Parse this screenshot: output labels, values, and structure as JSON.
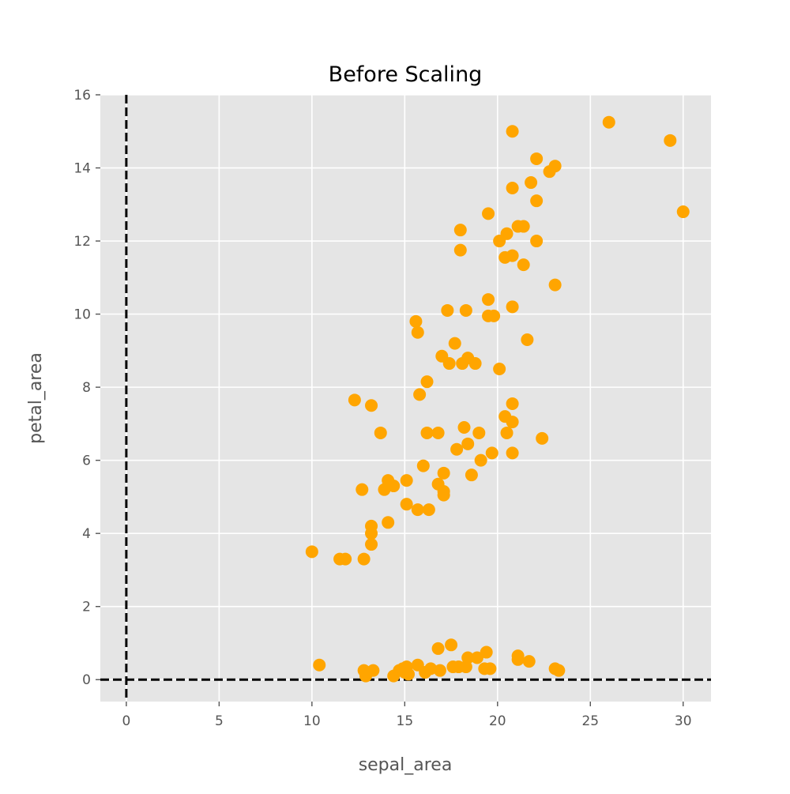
{
  "chart_data": {
    "type": "scatter",
    "title": "Before Scaling",
    "xlabel": "sepal_area",
    "ylabel": "petal_area",
    "xlim": [
      -1.4,
      31.5
    ],
    "ylim": [
      -0.6,
      16
    ],
    "xticks": [
      0,
      5,
      10,
      15,
      20,
      25,
      30
    ],
    "yticks": [
      0,
      2,
      4,
      6,
      8,
      10,
      12,
      14,
      16
    ],
    "grid": true,
    "legend": "none",
    "colors": {
      "background": "#e5e5e5",
      "grid": "#ffffff",
      "marker": "#ffa500",
      "reference_lines": "#000000"
    },
    "reference_lines": {
      "x": 0,
      "y": 0,
      "style": "dashed"
    },
    "series": [
      {
        "points": [
          [
            10.0,
            3.5
          ],
          [
            10.4,
            0.4
          ],
          [
            11.5,
            3.3
          ],
          [
            11.8,
            3.3
          ],
          [
            12.3,
            7.65
          ],
          [
            12.7,
            5.2
          ],
          [
            12.8,
            3.3
          ],
          [
            12.8,
            0.25
          ],
          [
            12.9,
            0.1
          ],
          [
            13.3,
            0.25
          ],
          [
            13.2,
            7.5
          ],
          [
            13.2,
            4.2
          ],
          [
            13.2,
            4.0
          ],
          [
            13.2,
            3.7
          ],
          [
            13.7,
            6.75
          ],
          [
            13.9,
            5.2
          ],
          [
            14.1,
            4.3
          ],
          [
            14.1,
            5.45
          ],
          [
            14.4,
            5.3
          ],
          [
            14.4,
            0.1
          ],
          [
            14.7,
            0.25
          ],
          [
            14.9,
            0.3
          ],
          [
            15.0,
            0.2
          ],
          [
            15.1,
            0.35
          ],
          [
            15.2,
            0.15
          ],
          [
            15.1,
            4.8
          ],
          [
            15.1,
            5.45
          ],
          [
            15.6,
            9.8
          ],
          [
            15.7,
            9.5
          ],
          [
            15.7,
            4.65
          ],
          [
            15.7,
            0.4
          ],
          [
            15.8,
            7.8
          ],
          [
            16.0,
            5.85
          ],
          [
            16.1,
            0.2
          ],
          [
            16.2,
            6.75
          ],
          [
            16.2,
            8.15
          ],
          [
            16.3,
            4.65
          ],
          [
            16.4,
            0.3
          ],
          [
            16.8,
            6.75
          ],
          [
            16.8,
            5.35
          ],
          [
            16.8,
            0.85
          ],
          [
            16.9,
            0.25
          ],
          [
            17.0,
            8.85
          ],
          [
            17.1,
            5.65
          ],
          [
            17.1,
            5.15
          ],
          [
            17.1,
            5.05
          ],
          [
            17.3,
            10.1
          ],
          [
            17.4,
            8.65
          ],
          [
            17.5,
            0.95
          ],
          [
            17.6,
            0.35
          ],
          [
            17.7,
            9.2
          ],
          [
            17.8,
            6.3
          ],
          [
            17.9,
            0.35
          ],
          [
            18.0,
            12.3
          ],
          [
            18.0,
            11.75
          ],
          [
            18.1,
            8.65
          ],
          [
            18.2,
            6.9
          ],
          [
            18.3,
            10.1
          ],
          [
            18.3,
            0.35
          ],
          [
            18.4,
            8.8
          ],
          [
            18.4,
            6.45
          ],
          [
            18.4,
            0.6
          ],
          [
            18.6,
            5.6
          ],
          [
            18.8,
            8.65
          ],
          [
            18.9,
            0.6
          ],
          [
            19.0,
            6.75
          ],
          [
            19.1,
            6.0
          ],
          [
            19.4,
            0.75
          ],
          [
            19.5,
            12.75
          ],
          [
            19.5,
            10.4
          ],
          [
            19.5,
            9.95
          ],
          [
            19.3,
            0.3
          ],
          [
            19.6,
            0.3
          ],
          [
            19.7,
            6.2
          ],
          [
            19.8,
            9.95
          ],
          [
            20.1,
            12.0
          ],
          [
            20.1,
            8.5
          ],
          [
            20.4,
            11.55
          ],
          [
            20.4,
            7.2
          ],
          [
            20.5,
            12.2
          ],
          [
            20.5,
            6.75
          ],
          [
            20.8,
            15.0
          ],
          [
            20.8,
            13.45
          ],
          [
            20.8,
            11.6
          ],
          [
            20.8,
            10.2
          ],
          [
            20.8,
            7.55
          ],
          [
            20.8,
            7.05
          ],
          [
            20.8,
            6.2
          ],
          [
            21.1,
            12.4
          ],
          [
            21.1,
            0.65
          ],
          [
            21.1,
            0.55
          ],
          [
            21.4,
            12.4
          ],
          [
            21.4,
            11.35
          ],
          [
            21.6,
            9.3
          ],
          [
            21.7,
            0.5
          ],
          [
            21.8,
            13.6
          ],
          [
            22.1,
            14.25
          ],
          [
            22.1,
            13.1
          ],
          [
            22.1,
            12.0
          ],
          [
            22.4,
            6.6
          ],
          [
            22.8,
            13.9
          ],
          [
            23.1,
            14.05
          ],
          [
            23.1,
            10.8
          ],
          [
            23.1,
            0.3
          ],
          [
            23.3,
            0.25
          ],
          [
            26.0,
            15.25
          ],
          [
            29.3,
            14.75
          ],
          [
            30.0,
            12.8
          ]
        ]
      }
    ]
  }
}
